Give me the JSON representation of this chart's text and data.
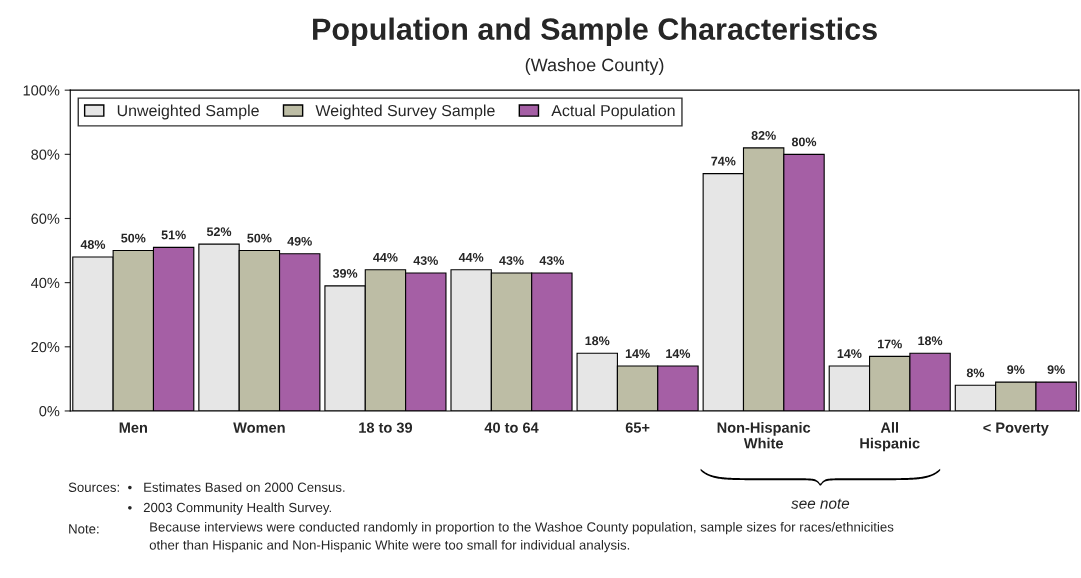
{
  "chart_data": {
    "type": "bar",
    "title": "Population and Sample Characteristics",
    "subtitle": "(Washoe County)",
    "categories": [
      "Men",
      "Women",
      "18 to 39",
      "40 to 64",
      "65+",
      "Non-Hispanic\nWhite",
      "All\nHispanic",
      "< Poverty"
    ],
    "series": [
      {
        "name": "Unweighted Sample",
        "color": "#e6e6e6",
        "values": [
          48,
          52,
          39,
          44,
          18,
          74,
          14,
          8
        ]
      },
      {
        "name": "Weighted Survey Sample",
        "color": "#bdbda5",
        "values": [
          50,
          50,
          44,
          43,
          14,
          82,
          17,
          9
        ]
      },
      {
        "name": "Actual Population",
        "color": "#a55fa5",
        "values": [
          51,
          49,
          43,
          43,
          14,
          80,
          18,
          9
        ]
      }
    ],
    "ylim": [
      0,
      100
    ],
    "yticks": [
      {
        "value": 0,
        "label": "0%"
      },
      {
        "value": 20,
        "label": "20%"
      },
      {
        "value": 40,
        "label": "40%"
      },
      {
        "value": 60,
        "label": "60%"
      },
      {
        "value": 80,
        "label": "80%"
      },
      {
        "value": 100,
        "label": "100%"
      }
    ],
    "value_labels": [
      [
        "48%",
        "52%",
        "39%",
        "44%",
        "18%",
        "74%",
        "14%",
        "8%"
      ],
      [
        "50%",
        "50%",
        "44%",
        "43%",
        "14%",
        "82%",
        "17%",
        "9%"
      ],
      [
        "51%",
        "49%",
        "43%",
        "43%",
        "14%",
        "80%",
        "18%",
        "9%"
      ]
    ],
    "legend": "top left",
    "grid": false,
    "annotations": [
      "see note",
      "Sources:",
      "•   Estimates Based on 2000 Census.",
      "•   2003 Community Health Survey.",
      "Note:",
      "Because interviews were conducted randomly in proportion to the Washoe County population, sample sizes for races/ethnicities\nother than Hispanic and Non-Hispanic White were too small for individual analysis."
    ]
  }
}
